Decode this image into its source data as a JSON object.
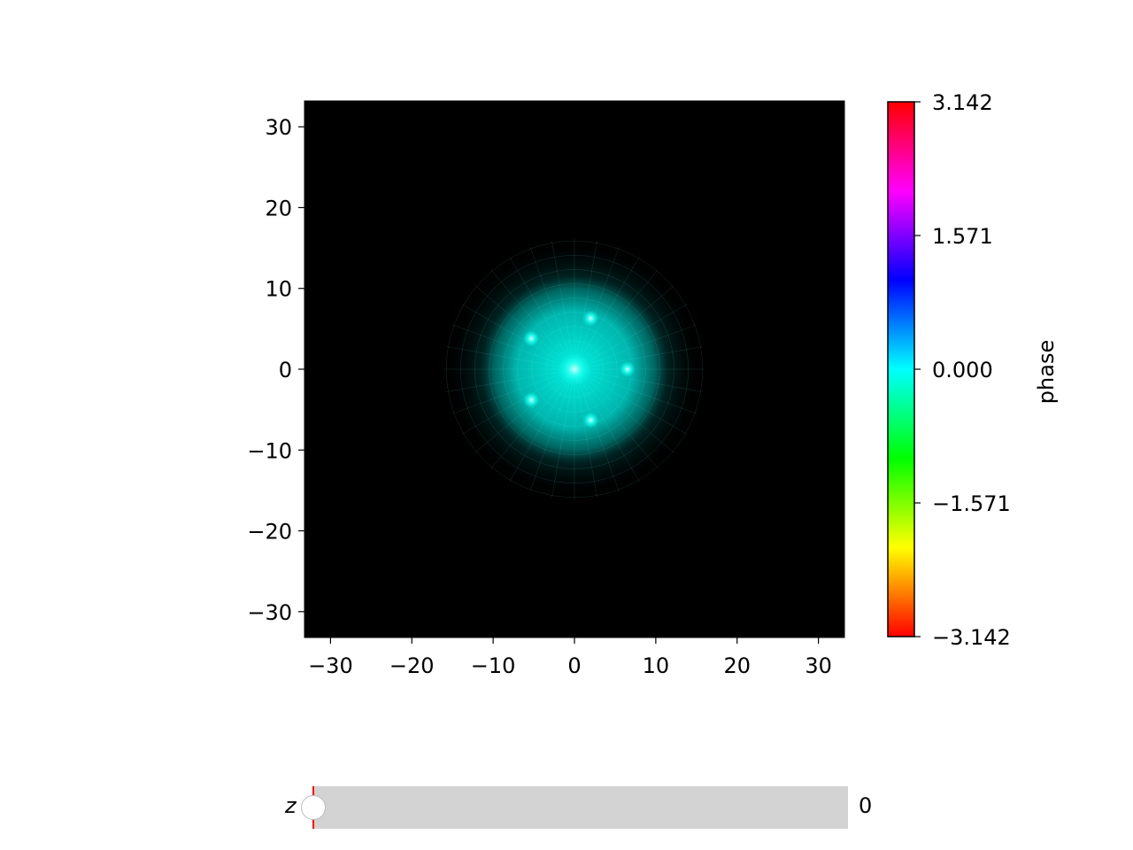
{
  "chart_data": {
    "type": "heatmap",
    "title": "",
    "xlabel": "",
    "ylabel": "",
    "xlim": [
      -33.2,
      33.2
    ],
    "ylim": [
      -33.2,
      33.2
    ],
    "x_ticks": [
      -30,
      -20,
      -10,
      0,
      10,
      20,
      30
    ],
    "y_ticks": [
      -30,
      -20,
      -10,
      0,
      10,
      20,
      30
    ],
    "x_tick_labels": [
      "−30",
      "−20",
      "−10",
      "0",
      "10",
      "20",
      "30"
    ],
    "y_tick_labels": [
      "−30",
      "−20",
      "−10",
      "0",
      "10",
      "20",
      "30"
    ],
    "background_color": "#000000",
    "cloud": {
      "color": "#00ffee",
      "center": [
        0,
        0
      ],
      "core_radius": 10.5,
      "halo_radius": 16
    },
    "bright_spots": [
      {
        "x": 2.0,
        "y": 6.3
      },
      {
        "x": -5.3,
        "y": 3.8
      },
      {
        "x": 6.5,
        "y": 0.0
      },
      {
        "x": -5.3,
        "y": -3.8
      },
      {
        "x": 2.0,
        "y": -6.3
      },
      {
        "x": 0.0,
        "y": 0.0
      }
    ],
    "colorbar": {
      "label": "phase",
      "range": [
        -3.142,
        3.142
      ],
      "ticks": [
        3.142,
        1.571,
        0.0,
        -1.571,
        -3.142
      ],
      "tick_labels": [
        "3.142",
        "1.571",
        "0.000",
        "−1.571",
        "−3.142"
      ],
      "colormap": "hsv"
    },
    "grid": false
  },
  "slider": {
    "label": "z",
    "value": 0,
    "value_label": "0",
    "min": 0,
    "max": 1,
    "track_color": "#d3d3d3",
    "init_marker_color": "#ff0000"
  }
}
